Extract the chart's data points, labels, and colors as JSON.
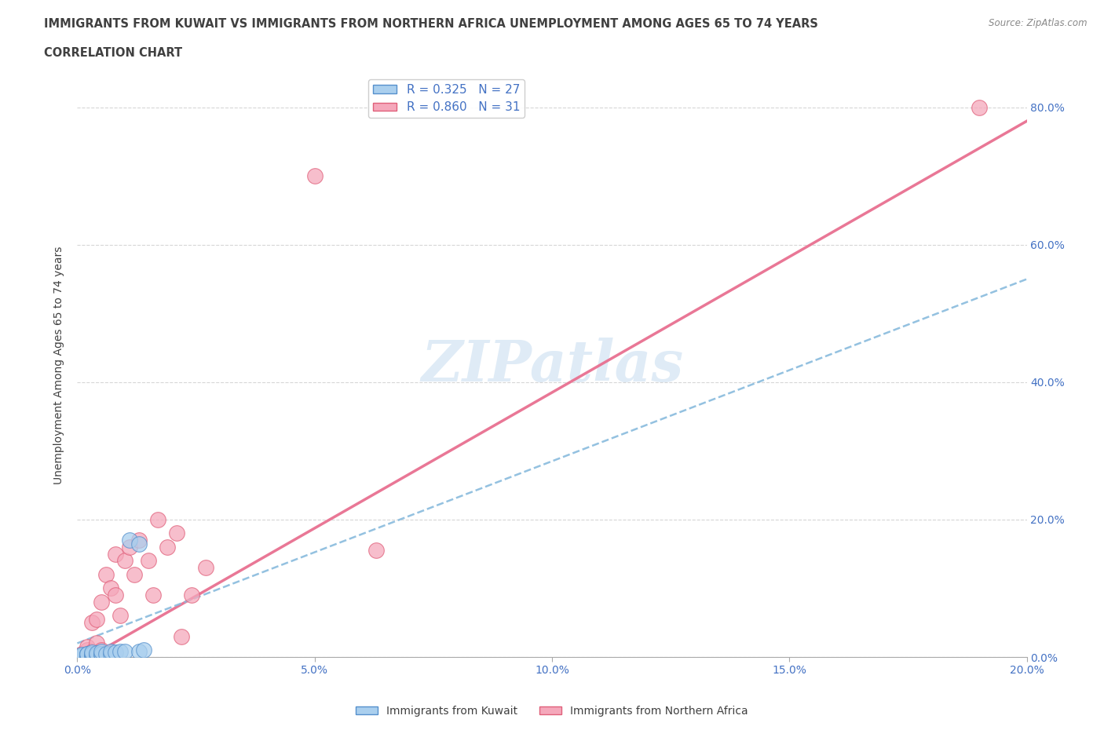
{
  "title_line1": "IMMIGRANTS FROM KUWAIT VS IMMIGRANTS FROM NORTHERN AFRICA UNEMPLOYMENT AMONG AGES 65 TO 74 YEARS",
  "title_line2": "CORRELATION CHART",
  "source": "Source: ZipAtlas.com",
  "ylabel": "Unemployment Among Ages 65 to 74 years",
  "watermark": "ZIPatlas",
  "kuwait_color": "#aacfee",
  "kuwait_edge": "#5590cc",
  "northern_africa_color": "#f5a8bb",
  "northern_africa_edge": "#e0607a",
  "kuwait_R": 0.325,
  "kuwait_N": 27,
  "na_R": 0.86,
  "na_N": 31,
  "legend_label_kuwait": "Immigrants from Kuwait",
  "legend_label_na": "Immigrants from Northern Africa",
  "kuwait_x": [
    0.001,
    0.001,
    0.001,
    0.002,
    0.002,
    0.002,
    0.002,
    0.002,
    0.003,
    0.003,
    0.003,
    0.003,
    0.004,
    0.004,
    0.005,
    0.005,
    0.005,
    0.006,
    0.007,
    0.007,
    0.008,
    0.009,
    0.01,
    0.011,
    0.013,
    0.013,
    0.014
  ],
  "kuwait_y": [
    0.001,
    0.002,
    0.003,
    0.001,
    0.002,
    0.003,
    0.004,
    0.005,
    0.002,
    0.003,
    0.005,
    0.007,
    0.003,
    0.006,
    0.003,
    0.005,
    0.008,
    0.005,
    0.005,
    0.008,
    0.007,
    0.008,
    0.008,
    0.17,
    0.165,
    0.008,
    0.01
  ],
  "na_x": [
    0.001,
    0.001,
    0.002,
    0.002,
    0.002,
    0.003,
    0.003,
    0.004,
    0.004,
    0.005,
    0.005,
    0.006,
    0.007,
    0.008,
    0.008,
    0.009,
    0.01,
    0.011,
    0.012,
    0.013,
    0.015,
    0.016,
    0.017,
    0.019,
    0.021,
    0.022,
    0.024,
    0.027,
    0.05,
    0.063,
    0.19
  ],
  "na_y": [
    0.001,
    0.005,
    0.003,
    0.01,
    0.015,
    0.008,
    0.05,
    0.02,
    0.055,
    0.08,
    0.01,
    0.12,
    0.1,
    0.09,
    0.15,
    0.06,
    0.14,
    0.16,
    0.12,
    0.17,
    0.14,
    0.09,
    0.2,
    0.16,
    0.18,
    0.03,
    0.09,
    0.13,
    0.7,
    0.155,
    0.8
  ],
  "na_trendline_x0": 0.0,
  "na_trendline_y0": -0.01,
  "na_trendline_x1": 0.2,
  "na_trendline_y1": 0.78,
  "kuw_trendline_x0": 0.0,
  "kuw_trendline_y0": 0.02,
  "kuw_trendline_x1": 0.2,
  "kuw_trendline_y1": 0.55,
  "xlim": [
    0.0,
    0.2
  ],
  "ylim": [
    0.0,
    0.85
  ],
  "xtick_vals": [
    0.0,
    0.05,
    0.1,
    0.15,
    0.2
  ],
  "xtick_labels": [
    "0.0%",
    "5.0%",
    "10.0%",
    "15.0%",
    "20.0%"
  ],
  "ytick_vals": [
    0.0,
    0.2,
    0.4,
    0.6,
    0.8
  ],
  "ytick_labels": [
    "0.0%",
    "20.0%",
    "40.0%",
    "60.0%",
    "80.0%"
  ],
  "background_color": "#ffffff",
  "grid_color": "#cccccc",
  "title_color": "#404040",
  "axis_tick_color": "#4472c4",
  "trendline_kuwait_color": "#88bbdd",
  "trendline_na_color": "#e87090"
}
